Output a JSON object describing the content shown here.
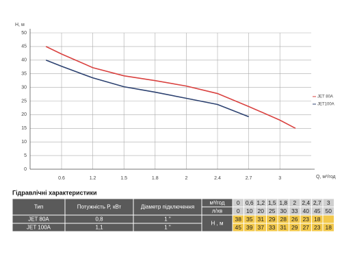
{
  "chart_data": {
    "type": "line",
    "y_label": "H, м",
    "x_label": "Q, м³/год",
    "categories": [
      null,
      "0.6",
      "1.2",
      "1.5",
      "1.8",
      "2",
      "2.4",
      "2.7",
      "3",
      null
    ],
    "series": [
      {
        "name": "JET 80A",
        "color": "#d9413f",
        "values": [
          45,
          42.25,
          37.25,
          34.25,
          32.5,
          30.5,
          27.75,
          23,
          18,
          15
        ]
      },
      {
        "name": "JET100A",
        "color": "#2c4170",
        "values": [
          40,
          37.75,
          33.5,
          30.25,
          28.25,
          26,
          23.75,
          19.25,
          null,
          null
        ]
      }
    ],
    "ylim": [
      0,
      50
    ],
    "yticks": [
      0,
      5,
      10,
      15,
      20,
      25,
      30,
      35,
      40,
      45,
      50
    ],
    "grid": true,
    "legend": "right"
  },
  "table": {
    "title": "Гідравлічні характеристики",
    "headers": [
      "Тип",
      "Потужність  P, кВт",
      "Діаметр підключення"
    ],
    "units": [
      "м³/год",
      "л/хв"
    ],
    "flow_m3h": [
      "0",
      "0,6",
      "1,2",
      "1,5",
      "1,8",
      "2",
      "2,4",
      "2,7",
      "3"
    ],
    "flow_lpm": [
      "0",
      "10",
      "20",
      "25",
      "30",
      "33",
      "40",
      "45",
      "50"
    ],
    "rows": [
      {
        "type": "JET 80A",
        "power": "0,8",
        "diameter": "1 \""
      },
      {
        "type": "JET 100A",
        "power": "1,1",
        "diameter": "1 \""
      }
    ],
    "head_label": "H , м",
    "heads": [
      [
        38,
        35,
        31,
        29,
        28,
        26,
        23,
        18,
        null
      ],
      [
        45,
        39,
        37,
        33,
        31,
        29,
        27,
        23,
        18
      ]
    ]
  }
}
